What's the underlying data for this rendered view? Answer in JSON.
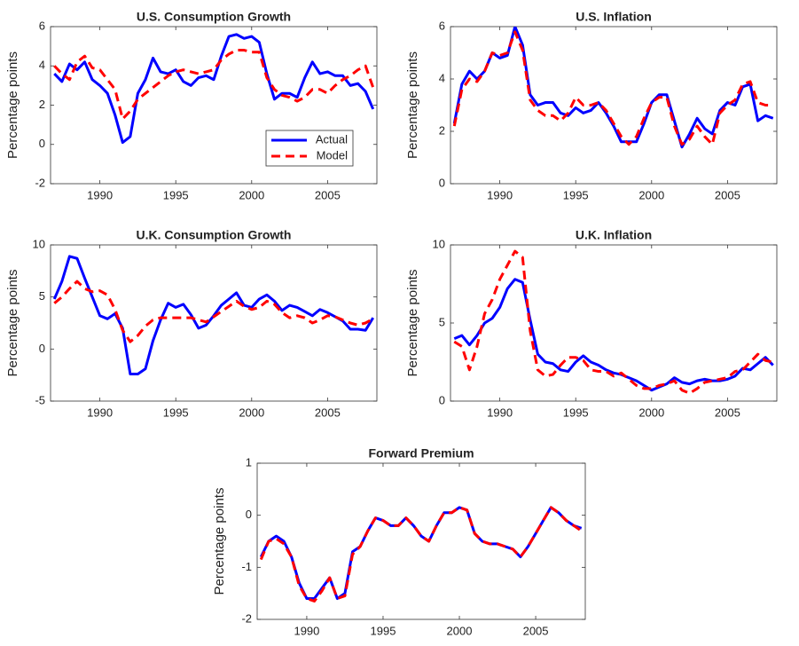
{
  "chart_data": [
    {
      "type": "line",
      "title": "U.S. Consumption Growth",
      "ylabel": "Percentage points",
      "x": [
        1987,
        1987.5,
        1988,
        1988.5,
        1989,
        1989.5,
        1990,
        1990.5,
        1991,
        1991.5,
        1992,
        1992.5,
        1993,
        1993.5,
        1994,
        1994.5,
        1995,
        1995.5,
        1996,
        1996.5,
        1997,
        1997.5,
        1998,
        1998.5,
        1999,
        1999.5,
        2000,
        2000.5,
        2001,
        2001.5,
        2002,
        2002.5,
        2003,
        2003.5,
        2004,
        2004.5,
        2005,
        2005.5,
        2006,
        2006.5,
        2007,
        2007.5,
        2008
      ],
      "xlim": [
        1986.75,
        2008.25
      ],
      "xticks": [
        1990,
        1995,
        2000,
        2005
      ],
      "ylim": [
        -2,
        6
      ],
      "yticks": [
        -2,
        0,
        2,
        4,
        6
      ],
      "legend": "lower right",
      "series": [
        {
          "name": "Actual",
          "color": "#0000ff",
          "style": "solid",
          "values": [
            3.6,
            3.2,
            4.1,
            3.8,
            4.2,
            3.3,
            3.0,
            2.6,
            1.5,
            0.1,
            0.4,
            2.6,
            3.3,
            4.4,
            3.7,
            3.6,
            3.8,
            3.2,
            3.0,
            3.4,
            3.5,
            3.3,
            4.5,
            5.5,
            5.6,
            5.4,
            5.5,
            5.2,
            3.6,
            2.3,
            2.6,
            2.6,
            2.4,
            3.4,
            4.2,
            3.6,
            3.7,
            3.5,
            3.5,
            3.0,
            3.1,
            2.7,
            1.8
          ]
        },
        {
          "name": "Model",
          "color": "#ff0000",
          "style": "dashed",
          "values": [
            4.0,
            3.6,
            3.3,
            4.2,
            4.5,
            3.9,
            3.8,
            3.3,
            2.8,
            1.3,
            1.7,
            2.3,
            2.6,
            2.9,
            3.2,
            3.5,
            3.7,
            3.8,
            3.7,
            3.6,
            3.7,
            3.8,
            4.3,
            4.6,
            4.8,
            4.8,
            4.7,
            4.7,
            3.4,
            2.8,
            2.5,
            2.4,
            2.2,
            2.4,
            2.8,
            2.8,
            2.6,
            3.0,
            3.3,
            3.5,
            3.8,
            4.0,
            2.9
          ]
        }
      ]
    },
    {
      "type": "line",
      "title": "U.S. Inflation",
      "ylabel": "Percentage points",
      "x": [
        1987,
        1987.5,
        1988,
        1988.5,
        1989,
        1989.5,
        1990,
        1990.5,
        1991,
        1991.5,
        1992,
        1992.5,
        1993,
        1993.5,
        1994,
        1994.5,
        1995,
        1995.5,
        1996,
        1996.5,
        1997,
        1997.5,
        1998,
        1998.5,
        1999,
        1999.5,
        2000,
        2000.5,
        2001,
        2001.5,
        2002,
        2002.5,
        2003,
        2003.5,
        2004,
        2004.5,
        2005,
        2005.5,
        2006,
        2006.5,
        2007,
        2007.5,
        2008
      ],
      "xlim": [
        1986.75,
        2008.25
      ],
      "xticks": [
        1990,
        1995,
        2000,
        2005
      ],
      "ylim": [
        0,
        6
      ],
      "yticks": [
        0,
        2,
        4,
        6
      ],
      "series": [
        {
          "name": "Actual",
          "color": "#0000ff",
          "style": "solid",
          "values": [
            2.3,
            3.8,
            4.3,
            4.0,
            4.3,
            5.0,
            4.8,
            4.9,
            6.0,
            5.3,
            3.4,
            3.0,
            3.1,
            3.1,
            2.7,
            2.6,
            2.9,
            2.7,
            2.8,
            3.1,
            2.7,
            2.2,
            1.6,
            1.6,
            1.6,
            2.3,
            3.1,
            3.4,
            3.4,
            2.4,
            1.4,
            1.9,
            2.5,
            2.1,
            1.9,
            2.8,
            3.1,
            3.0,
            3.7,
            3.8,
            2.4,
            2.6,
            2.5
          ]
        },
        {
          "name": "Model",
          "color": "#ff0000",
          "style": "dashed",
          "values": [
            2.2,
            3.6,
            4.0,
            3.9,
            4.3,
            5.0,
            4.9,
            5.0,
            5.8,
            5.1,
            3.2,
            2.8,
            2.6,
            2.6,
            2.4,
            2.7,
            3.3,
            3.0,
            3.0,
            3.1,
            2.8,
            2.3,
            1.8,
            1.5,
            1.8,
            2.5,
            3.1,
            3.3,
            3.3,
            2.2,
            1.5,
            1.7,
            2.2,
            1.8,
            1.5,
            2.7,
            3.0,
            3.2,
            3.8,
            3.9,
            3.1,
            3.0,
            3.0
          ]
        }
      ]
    },
    {
      "type": "line",
      "title": "U.K. Consumption Growth",
      "ylabel": "Percentage points",
      "x": [
        1987,
        1987.5,
        1988,
        1988.5,
        1989,
        1989.5,
        1990,
        1990.5,
        1991,
        1991.5,
        1992,
        1992.5,
        1993,
        1993.5,
        1994,
        1994.5,
        1995,
        1995.5,
        1996,
        1996.5,
        1997,
        1997.5,
        1998,
        1998.5,
        1999,
        1999.5,
        2000,
        2000.5,
        2001,
        2001.5,
        2002,
        2002.5,
        2003,
        2003.5,
        2004,
        2004.5,
        2005,
        2005.5,
        2006,
        2006.5,
        2007,
        2007.5,
        2008
      ],
      "xlim": [
        1986.75,
        2008.25
      ],
      "xticks": [
        1990,
        1995,
        2000,
        2005
      ],
      "ylim": [
        -5,
        10
      ],
      "yticks": [
        -5,
        0,
        5,
        10
      ],
      "series": [
        {
          "name": "Actual",
          "color": "#0000ff",
          "style": "solid",
          "values": [
            4.8,
            6.5,
            8.9,
            8.7,
            6.8,
            5.0,
            3.2,
            2.9,
            3.4,
            2.0,
            -2.4,
            -2.4,
            -1.9,
            0.8,
            2.8,
            4.4,
            4.0,
            4.3,
            3.3,
            2.0,
            2.3,
            3.2,
            4.2,
            4.8,
            5.4,
            4.2,
            4.0,
            4.8,
            5.2,
            4.6,
            3.7,
            4.2,
            4.0,
            3.6,
            3.2,
            3.8,
            3.5,
            3.1,
            2.7,
            1.9,
            1.9,
            1.8,
            3.0
          ]
        },
        {
          "name": "Model",
          "color": "#ff0000",
          "style": "dashed",
          "values": [
            4.4,
            5.0,
            5.8,
            6.5,
            5.8,
            5.5,
            5.6,
            5.2,
            3.8,
            1.8,
            0.7,
            1.3,
            2.2,
            2.8,
            3.0,
            3.0,
            3.0,
            3.0,
            3.0,
            2.8,
            2.6,
            3.1,
            3.6,
            4.1,
            4.6,
            4.1,
            3.8,
            4.0,
            4.6,
            4.3,
            3.5,
            3.0,
            3.2,
            3.0,
            2.5,
            2.8,
            3.2,
            3.1,
            2.8,
            2.5,
            2.3,
            2.5,
            2.9
          ]
        }
      ]
    },
    {
      "type": "line",
      "title": "U.K. Inflation",
      "ylabel": "Percentage points",
      "x": [
        1987,
        1987.5,
        1988,
        1988.5,
        1989,
        1989.5,
        1990,
        1990.5,
        1991,
        1991.5,
        1992,
        1992.5,
        1993,
        1993.5,
        1994,
        1994.5,
        1995,
        1995.5,
        1996,
        1996.5,
        1997,
        1997.5,
        1998,
        1998.5,
        1999,
        1999.5,
        2000,
        2000.5,
        2001,
        2001.5,
        2002,
        2002.5,
        2003,
        2003.5,
        2004,
        2004.5,
        2005,
        2005.5,
        2006,
        2006.5,
        2007,
        2007.5,
        2008
      ],
      "xlim": [
        1986.75,
        2008.25
      ],
      "xticks": [
        1990,
        1995,
        2000,
        2005
      ],
      "ylim": [
        0,
        10
      ],
      "yticks": [
        0,
        5,
        10
      ],
      "series": [
        {
          "name": "Actual",
          "color": "#0000ff",
          "style": "solid",
          "values": [
            4.0,
            4.2,
            3.6,
            4.2,
            5.0,
            5.3,
            6.0,
            7.2,
            7.8,
            7.6,
            5.2,
            3.0,
            2.5,
            2.4,
            2.0,
            1.9,
            2.5,
            2.9,
            2.5,
            2.3,
            2.0,
            1.8,
            1.7,
            1.5,
            1.3,
            1.0,
            0.7,
            0.9,
            1.1,
            1.5,
            1.2,
            1.1,
            1.3,
            1.4,
            1.3,
            1.3,
            1.4,
            1.6,
            2.1,
            2.0,
            2.4,
            2.8,
            2.3
          ]
        },
        {
          "name": "Model",
          "color": "#ff0000",
          "style": "dashed",
          "values": [
            3.8,
            3.5,
            2.0,
            3.5,
            5.6,
            6.5,
            7.8,
            8.7,
            9.6,
            9.2,
            4.5,
            2.0,
            1.6,
            1.7,
            2.3,
            2.8,
            2.8,
            2.6,
            2.0,
            1.9,
            1.9,
            1.6,
            1.8,
            1.4,
            1.0,
            0.8,
            0.8,
            1.0,
            1.1,
            1.3,
            0.7,
            0.5,
            0.8,
            1.2,
            1.3,
            1.4,
            1.5,
            1.9,
            2.0,
            2.5,
            3.0,
            2.6,
            2.5
          ]
        }
      ]
    },
    {
      "type": "line",
      "title": "Forward Premium",
      "ylabel": "Percentage points",
      "x": [
        1987,
        1987.5,
        1988,
        1988.5,
        1989,
        1989.5,
        1990,
        1990.5,
        1991,
        1991.5,
        1992,
        1992.5,
        1993,
        1993.5,
        1994,
        1994.5,
        1995,
        1995.5,
        1996,
        1996.5,
        1997,
        1997.5,
        1998,
        1998.5,
        1999,
        1999.5,
        2000,
        2000.5,
        2001,
        2001.5,
        2002,
        2002.5,
        2003,
        2003.5,
        2004,
        2004.5,
        2005,
        2005.5,
        2006,
        2006.5,
        2007,
        2007.5,
        2008
      ],
      "xlim": [
        1986.75,
        2008.25
      ],
      "xticks": [
        1990,
        1995,
        2000,
        2005
      ],
      "ylim": [
        -2,
        1
      ],
      "yticks": [
        -2,
        -1,
        0,
        1
      ],
      "series": [
        {
          "name": "Actual",
          "color": "#0000ff",
          "style": "solid",
          "values": [
            -0.8,
            -0.5,
            -0.4,
            -0.5,
            -0.8,
            -1.3,
            -1.6,
            -1.6,
            -1.4,
            -1.2,
            -1.6,
            -1.5,
            -0.7,
            -0.6,
            -0.3,
            -0.05,
            -0.1,
            -0.2,
            -0.2,
            -0.05,
            -0.2,
            -0.4,
            -0.5,
            -0.2,
            0.05,
            0.05,
            0.15,
            0.1,
            -0.35,
            -0.5,
            -0.55,
            -0.55,
            -0.6,
            -0.65,
            -0.8,
            -0.6,
            -0.35,
            -0.1,
            0.15,
            0.05,
            -0.1,
            -0.2,
            -0.25
          ]
        },
        {
          "name": "Model",
          "color": "#ff0000",
          "style": "dashed",
          "values": [
            -0.85,
            -0.5,
            -0.45,
            -0.55,
            -0.8,
            -1.35,
            -1.6,
            -1.65,
            -1.45,
            -1.2,
            -1.6,
            -1.55,
            -0.75,
            -0.6,
            -0.3,
            -0.05,
            -0.1,
            -0.2,
            -0.2,
            -0.05,
            -0.2,
            -0.4,
            -0.5,
            -0.2,
            0.05,
            0.05,
            0.15,
            0.1,
            -0.35,
            -0.5,
            -0.55,
            -0.55,
            -0.6,
            -0.65,
            -0.8,
            -0.6,
            -0.35,
            -0.1,
            0.15,
            0.05,
            -0.1,
            -0.2,
            -0.3
          ]
        }
      ]
    }
  ]
}
